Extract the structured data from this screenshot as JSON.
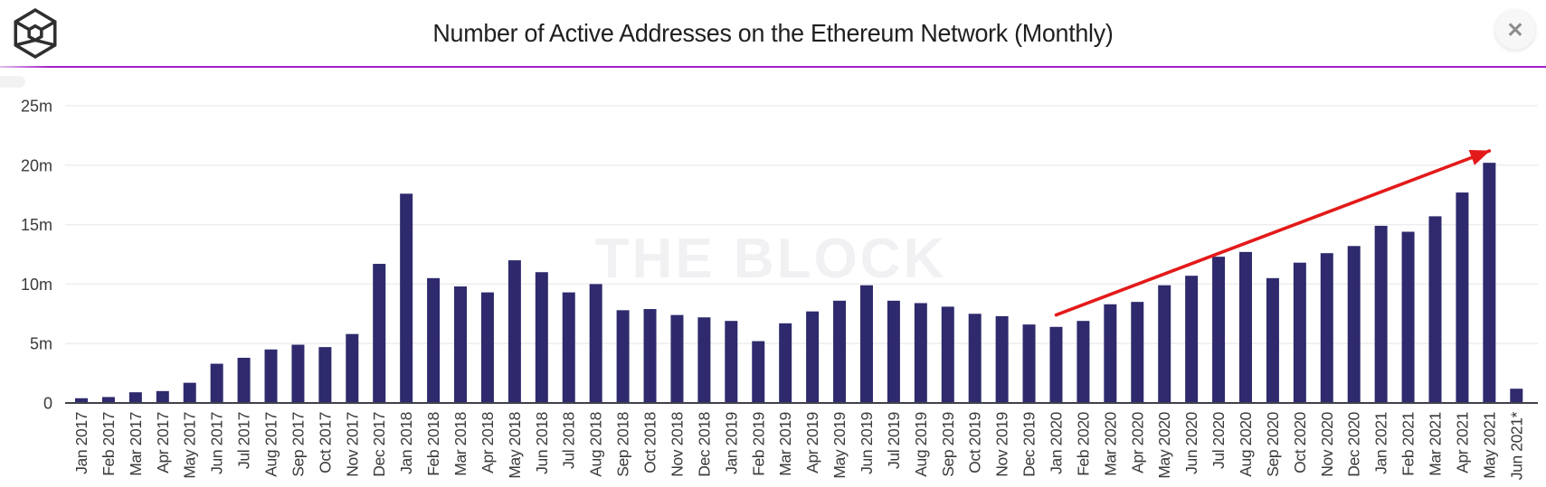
{
  "window": {
    "title": "Number of Active Addresses on the Ethereum Network (Monthly)",
    "logo_name": "the-block-cube-logo",
    "close_icon": "✕"
  },
  "watermark": "THE BLOCK",
  "colors": {
    "bar": "#2e2a6d",
    "divider": "#a21fc7",
    "divider_fade": "#e3bdef",
    "arrow": "#e31a1a",
    "grid": "#ececec",
    "axis": "#41414b",
    "tick_text": "#3a3a3a",
    "title_text": "#1f1f1f",
    "watermark_text": "#f1f1f3",
    "close_glyph": "#8d8d8d",
    "logo_stroke": "#2f2f2f"
  },
  "chart_data": {
    "type": "bar",
    "title": "Number of Active Addresses on the Ethereum Network (Monthly)",
    "unit": "millions of active addresses",
    "categories": [
      "Jan 2017",
      "Feb 2017",
      "Mar 2017",
      "Apr 2017",
      "May 2017",
      "Jun 2017",
      "Jul 2017",
      "Aug 2017",
      "Sep 2017",
      "Oct 2017",
      "Nov 2017",
      "Dec 2017",
      "Jan 2018",
      "Feb 2018",
      "Mar 2018",
      "Apr 2018",
      "May 2018",
      "Jun 2018",
      "Jul 2018",
      "Aug 2018",
      "Sep 2018",
      "Oct 2018",
      "Nov 2018",
      "Dec 2018",
      "Jan 2019",
      "Feb 2019",
      "Mar 2019",
      "Apr 2019",
      "May 2019",
      "Jun 2019",
      "Jul 2019",
      "Aug 2019",
      "Sep 2019",
      "Oct 2019",
      "Nov 2019",
      "Dec 2019",
      "Jan 2020",
      "Feb 2020",
      "Mar 2020",
      "Apr 2020",
      "May 2020",
      "Jun 2020",
      "Jul 2020",
      "Aug 2020",
      "Sep 2020",
      "Oct 2020",
      "Nov 2020",
      "Dec 2020",
      "Jan 2021",
      "Feb 2021",
      "Mar 2021",
      "Apr 2021",
      "May 2021",
      "Jun 2021*"
    ],
    "values": [
      0.4,
      0.5,
      0.9,
      1.0,
      1.7,
      3.3,
      3.8,
      4.5,
      4.9,
      4.7,
      5.8,
      11.7,
      17.6,
      10.5,
      9.8,
      9.3,
      12.0,
      11.0,
      9.3,
      10.0,
      7.8,
      7.9,
      7.4,
      7.2,
      6.9,
      5.2,
      6.7,
      7.7,
      8.6,
      9.9,
      8.6,
      8.4,
      8.1,
      7.5,
      7.3,
      6.6,
      6.4,
      6.9,
      8.3,
      8.5,
      9.9,
      10.7,
      12.3,
      12.7,
      10.5,
      11.8,
      12.6,
      13.2,
      14.9,
      14.4,
      15.7,
      17.7,
      20.2,
      1.2
    ],
    "xlabel": "",
    "ylabel": "",
    "ylim": [
      0,
      25
    ],
    "yticks": [
      0,
      5,
      10,
      15,
      20,
      25
    ],
    "ytick_labels": [
      "0",
      "5m",
      "10m",
      "15m",
      "20m",
      "25m"
    ],
    "grid": true,
    "legend": false,
    "annotations": [
      {
        "type": "arrow",
        "from": {
          "month": "Jan 2020",
          "value": 7.4
        },
        "to": {
          "month": "May 2021",
          "value": 21.2
        },
        "color": "#e31a1a"
      }
    ]
  }
}
